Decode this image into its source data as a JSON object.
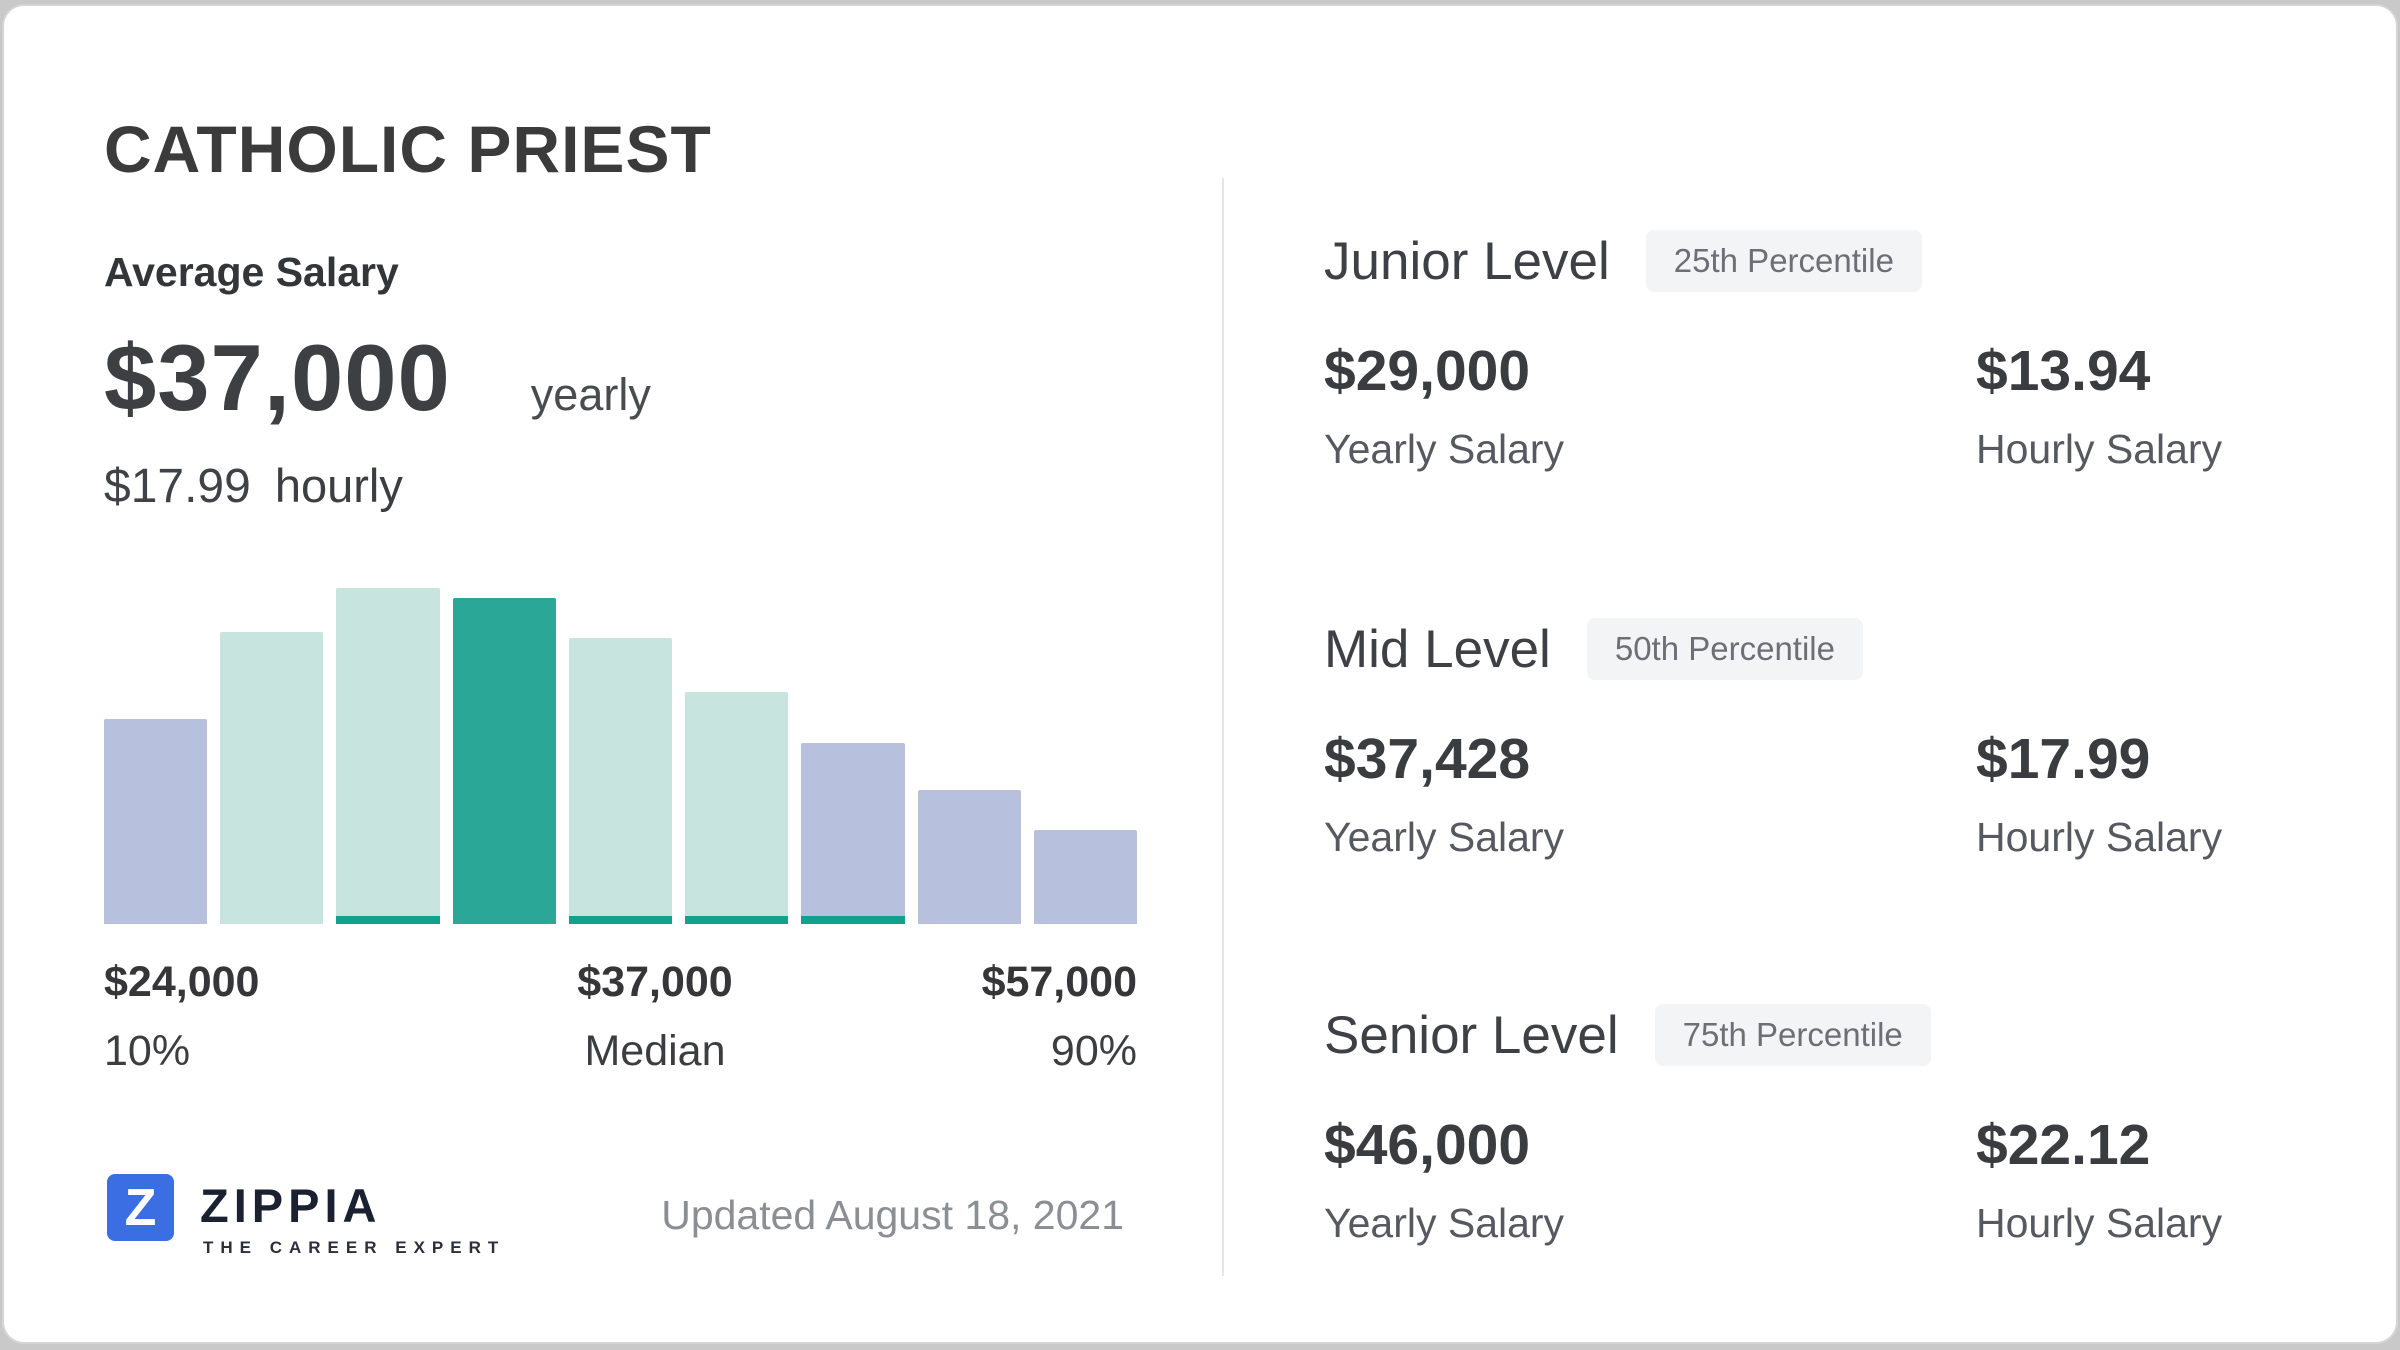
{
  "title": "CATHOLIC PRIEST",
  "average": {
    "label": "Average Salary",
    "yearly_value": "$37,000",
    "yearly_unit": "yearly",
    "hourly_value": "$17.99",
    "hourly_unit": "hourly"
  },
  "chart_data": {
    "type": "bar",
    "title": "Catholic Priest salary distribution",
    "categories": [
      "b1",
      "b2",
      "b3",
      "b4",
      "b5",
      "b6",
      "b7",
      "b8",
      "b9"
    ],
    "values_relative": [
      0.61,
      0.87,
      1.0,
      0.97,
      0.85,
      0.69,
      0.54,
      0.4,
      0.28
    ],
    "bar_color_keys": [
      "lavender",
      "teal_light",
      "teal_light",
      "teal_dark",
      "teal_light",
      "teal_light",
      "lavender",
      "lavender",
      "lavender"
    ],
    "bottom_stripe": [
      false,
      false,
      true,
      false,
      true,
      true,
      true,
      false,
      false
    ],
    "median_bar_index": 3,
    "grid": false,
    "x_annotations": [
      {
        "value": "$24,000",
        "tag": "10%",
        "position": "left"
      },
      {
        "value": "$37,000",
        "tag": "Median",
        "position": "center"
      },
      {
        "value": "$57,000",
        "tag": "90%",
        "position": "right"
      }
    ],
    "xlabel": "",
    "ylabel": ""
  },
  "colors": {
    "lavender": "#b7c0dc",
    "teal_light": "#c7e4df",
    "teal_dark": "#2aa797",
    "stripe": "#12a18c",
    "zippia_blue": "#3a6ee2",
    "divider": "#e5e6e8",
    "badge_bg": "#f3f4f6"
  },
  "footer": {
    "brand": "ZIPPIA",
    "brand_letter": "Z",
    "tagline": "THE CAREER EXPERT",
    "updated": "Updated August 18, 2021"
  },
  "levels": [
    {
      "name": "Junior Level",
      "percentile": "25th Percentile",
      "yearly_value": "$29,000",
      "yearly_label": "Yearly Salary",
      "hourly_value": "$13.94",
      "hourly_label": "Hourly Salary"
    },
    {
      "name": "Mid Level",
      "percentile": "50th Percentile",
      "yearly_value": "$37,428",
      "yearly_label": "Yearly Salary",
      "hourly_value": "$17.99",
      "hourly_label": "Hourly Salary"
    },
    {
      "name": "Senior Level",
      "percentile": "75th Percentile",
      "yearly_value": "$46,000",
      "yearly_label": "Yearly Salary",
      "hourly_value": "$22.12",
      "hourly_label": "Hourly Salary"
    }
  ]
}
